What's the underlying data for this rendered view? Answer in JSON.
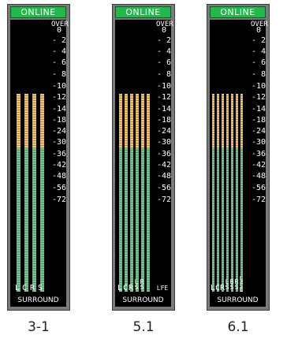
{
  "status_label": "ONLINE",
  "scale_labels": [
    "OVER",
    "0",
    "- 2",
    "- 4",
    "- 6",
    "- 8",
    "-10",
    "-12",
    "-14",
    "-18",
    "-24",
    "-30",
    "-36",
    "-42",
    "-48",
    "-56",
    "-72"
  ],
  "section_label": "SURROUND",
  "panels": [
    {
      "caption": "3-1",
      "channels": [
        "L",
        "C",
        "R",
        "S"
      ]
    },
    {
      "caption": "5.1",
      "channels": [
        "L",
        "C",
        "R",
        "L S",
        "R S",
        "LFE"
      ]
    },
    {
      "caption": "6.1",
      "channels": [
        "L",
        "C",
        "R",
        "L S",
        "B S",
        "R S",
        "L F E"
      ]
    }
  ],
  "colors": {
    "meter_upper": "#f6c36a",
    "meter_lower": "#74c690",
    "status_green": "#22b84c",
    "panel_frame": "#7b7b7b",
    "screen": "#000000"
  }
}
